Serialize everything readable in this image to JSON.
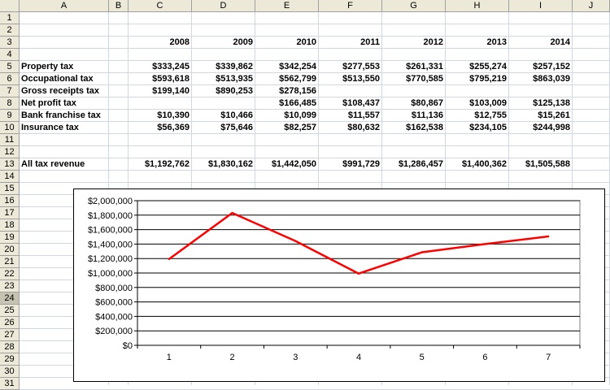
{
  "columns": [
    "A",
    "B",
    "C",
    "D",
    "E",
    "F",
    "G",
    "H",
    "I",
    "J"
  ],
  "rows": [
    "1",
    "2",
    "3",
    "4",
    "5",
    "6",
    "7",
    "8",
    "9",
    "10",
    "11",
    "12",
    "13",
    "14",
    "15",
    "16",
    "17",
    "18",
    "19",
    "20",
    "21",
    "22",
    "23",
    "24",
    "25",
    "26",
    "27",
    "28",
    "29",
    "30",
    "31"
  ],
  "years": [
    "2008",
    "2009",
    "2010",
    "2011",
    "2012",
    "2013",
    "2014"
  ],
  "table": [
    {
      "label": "Property tax",
      "values": [
        "$333,245",
        "$339,862",
        "$342,254",
        "$277,553",
        "$261,331",
        "$255,274",
        "$257,152"
      ]
    },
    {
      "label": "Occupational tax",
      "values": [
        "$593,618",
        "$513,935",
        "$562,799",
        "$513,550",
        "$770,585",
        "$795,219",
        "$863,039"
      ]
    },
    {
      "label": "Gross receipts tax",
      "values": [
        "$199,140",
        "$890,253",
        "$278,156",
        "",
        "",
        "",
        ""
      ]
    },
    {
      "label": "Net profit tax",
      "values": [
        "",
        "",
        "$166,485",
        "$108,437",
        "$80,867",
        "$103,009",
        "$125,138"
      ]
    },
    {
      "label": "Bank franchise tax",
      "values": [
        "$10,390",
        "$10,466",
        "$10,099",
        "$11,557",
        "$11,136",
        "$12,755",
        "$15,261"
      ]
    },
    {
      "label": "Insurance tax",
      "values": [
        "$56,369",
        "$75,646",
        "$82,257",
        "$80,632",
        "$162,538",
        "$234,105",
        "$244,998"
      ]
    }
  ],
  "total": {
    "label": "All tax revenue",
    "values": [
      "$1,192,762",
      "$1,830,162",
      "$1,442,050",
      "$991,729",
      "$1,286,457",
      "$1,400,362",
      "$1,505,588"
    ]
  },
  "chart_data": {
    "type": "line",
    "categories": [
      "1",
      "2",
      "3",
      "4",
      "5",
      "6",
      "7"
    ],
    "series": [
      {
        "values": [
          1192762,
          1830162,
          1442050,
          991729,
          1286457,
          1400362,
          1505588
        ],
        "color": "#ff0000"
      }
    ],
    "ylim": [
      0,
      2000000
    ],
    "yticks": [
      "$0",
      "$200,000",
      "$400,000",
      "$600,000",
      "$800,000",
      "$1,000,000",
      "$1,200,000",
      "$1,400,000",
      "$1,600,000",
      "$1,800,000",
      "$2,000,000"
    ],
    "grid": true,
    "plot_bg": "#ffffff"
  }
}
